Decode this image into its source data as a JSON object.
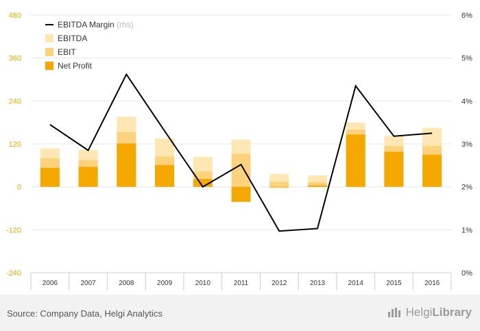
{
  "chart_data": {
    "type": "bar",
    "categories": [
      "2006",
      "2007",
      "2008",
      "2009",
      "2010",
      "2011",
      "2012",
      "2013",
      "2014",
      "2015",
      "2016"
    ],
    "series": [
      {
        "name": "EBITDA",
        "kind": "bar",
        "axis": "left",
        "color": "#ffe7b3",
        "values": [
          107,
          104,
          196,
          135,
          84,
          132,
          36,
          32,
          180,
          142,
          165
        ]
      },
      {
        "name": "EBIT",
        "kind": "bar",
        "axis": "left",
        "color": "#fcd27d",
        "values": [
          80,
          75,
          153,
          85,
          43,
          92,
          14,
          13,
          160,
          114,
          114
        ]
      },
      {
        "name": "Net Profit",
        "kind": "bar",
        "axis": "left",
        "color": "#f5a800",
        "values": [
          53,
          56,
          121,
          61,
          22,
          -42,
          -2,
          4,
          146,
          98,
          90
        ]
      },
      {
        "name": "EBITDA Margin",
        "name_suffix": "(rhs)",
        "kind": "line",
        "axis": "right",
        "color": "#000000",
        "values": [
          3.45,
          2.85,
          4.62,
          3.3,
          2.0,
          2.52,
          0.97,
          1.03,
          4.35,
          3.18,
          3.25
        ]
      }
    ],
    "left_axis": {
      "min": -240,
      "max": 480,
      "ticks": [
        480,
        360,
        240,
        120,
        0,
        -120,
        -240
      ],
      "tick_labels": [
        "480",
        "360",
        "240",
        "120",
        "0",
        "-120",
        "-240"
      ]
    },
    "right_axis": {
      "min": 0,
      "max": 6,
      "ticks": [
        6,
        5,
        4,
        3,
        2,
        1,
        0
      ],
      "tick_labels": [
        "6%",
        "5%",
        "4%",
        "3%",
        "2%",
        "1%",
        "0%"
      ]
    },
    "grid": true,
    "legend_position": "top-left"
  },
  "footer": {
    "source": "Source: Company Data, Helgi Analytics",
    "brand_light": "Helgi",
    "brand_strong": "Library"
  }
}
